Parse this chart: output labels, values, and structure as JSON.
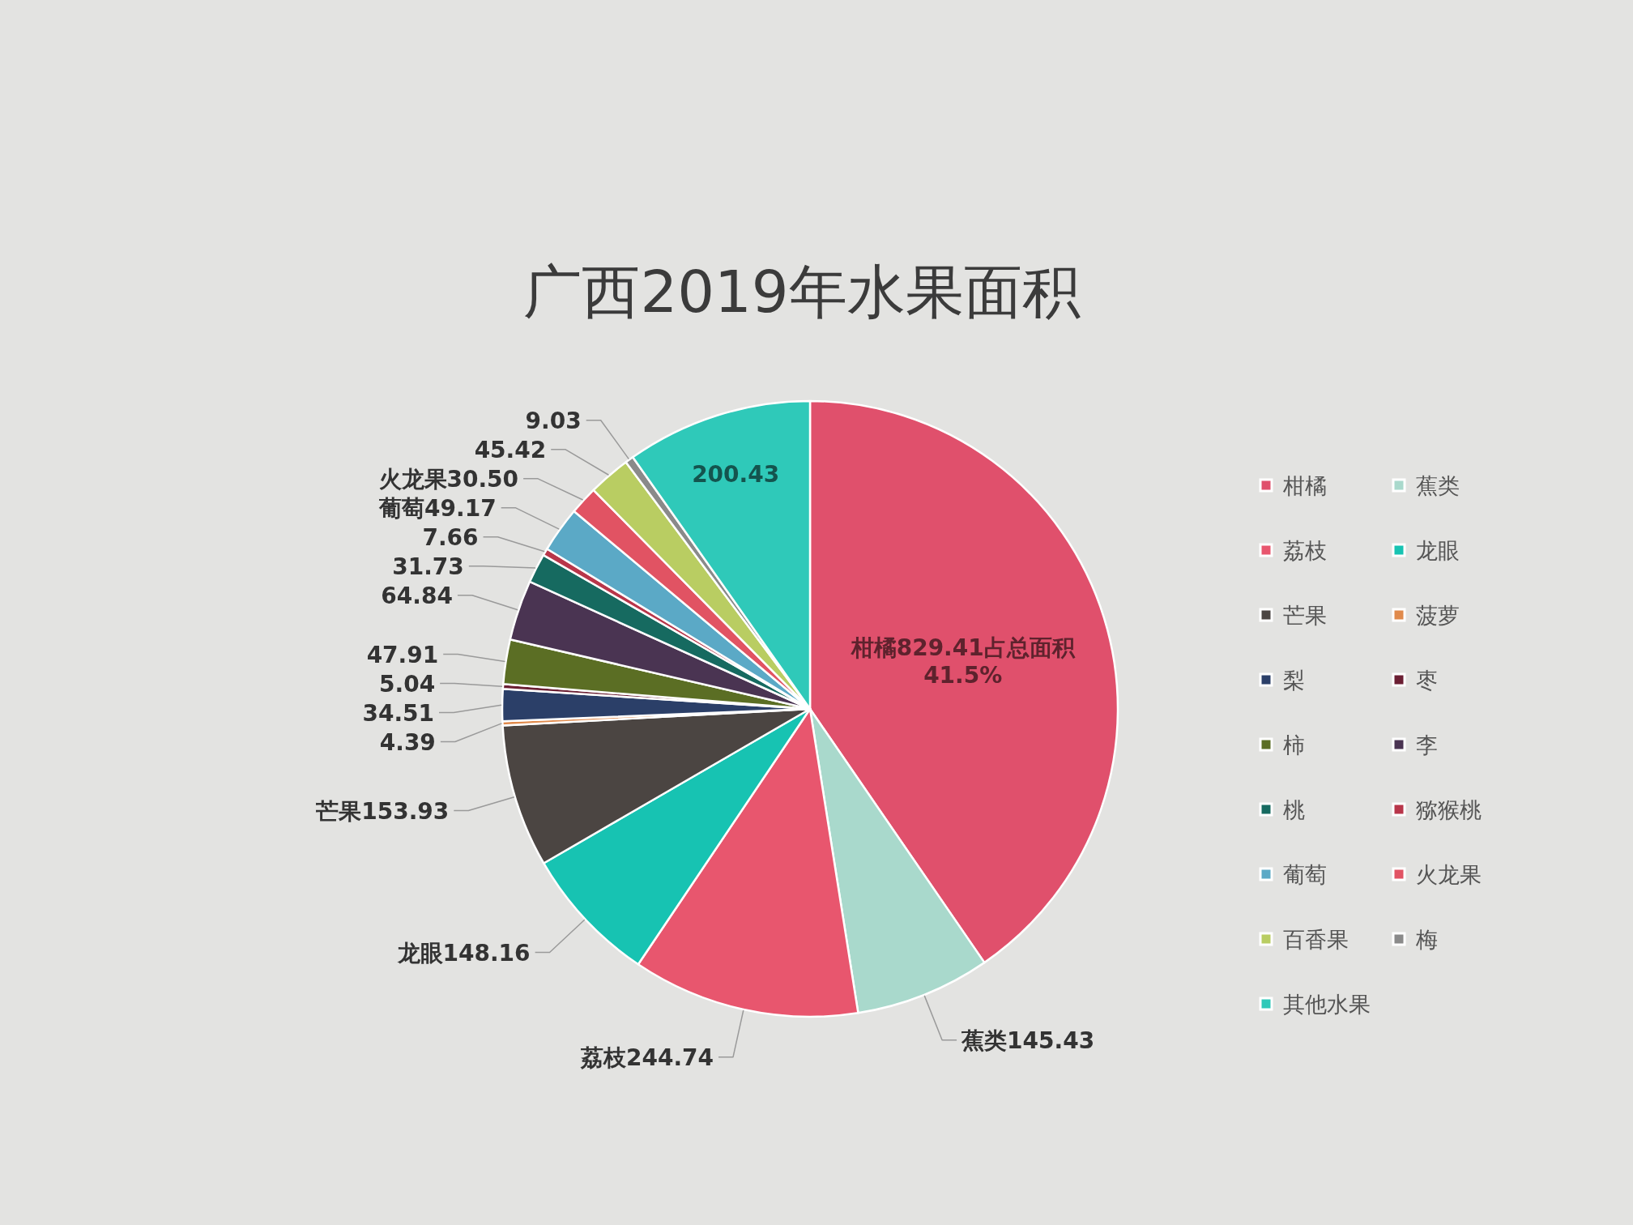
{
  "chart_data": {
    "type": "pie",
    "title": "广西2019年水果面积",
    "categories": [
      "柑橘",
      "蕉类",
      "荔枝",
      "龙眼",
      "芒果",
      "菠萝",
      "梨",
      "枣",
      "柿",
      "李",
      "桃",
      "猕猴桃",
      "葡萄",
      "火龙果",
      "百香果",
      "梅",
      "其他水果"
    ],
    "values": [
      829.41,
      145.43,
      244.74,
      148.16,
      153.93,
      4.39,
      34.51,
      5.04,
      47.91,
      64.84,
      31.73,
      7.66,
      49.17,
      30.5,
      45.42,
      9.03,
      200.43
    ],
    "colors": [
      "#e0506c",
      "#a9d9cc",
      "#e8566e",
      "#17c3b2",
      "#4b4542",
      "#e08a4c",
      "#2b3f68",
      "#6b1f33",
      "#5b6e24",
      "#4a3452",
      "#166a60",
      "#b8364a",
      "#5ba9c6",
      "#e15363",
      "#b9cd62",
      "#8a8a8a",
      "#2fc9b9"
    ],
    "value_labels": [
      "柑橘829.41占总面积\n41.5%",
      "蕉类145.43",
      "荔枝244.74",
      "龙眼148.16",
      "芒果153.93",
      "4.39",
      "34.51",
      "5.04",
      "47.91",
      "64.84",
      "31.73",
      "7.66",
      "葡萄49.17",
      "火龙果30.50",
      "45.42",
      "9.03",
      "200.43"
    ],
    "legend": "right"
  }
}
